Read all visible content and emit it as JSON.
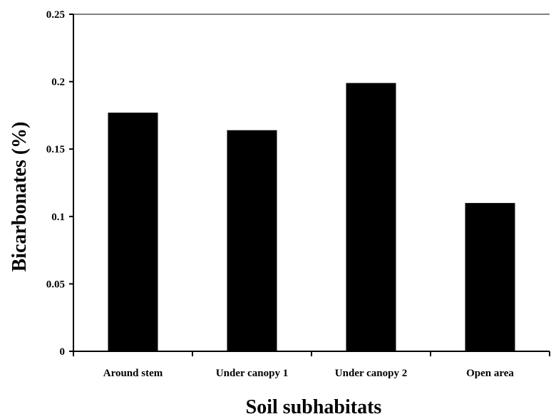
{
  "chart_data": {
    "type": "bar",
    "title": "",
    "xlabel": "Soil subhabitats",
    "ylabel": "Bicarbonates (%)",
    "categories": [
      "Around stem",
      "Under canopy 1",
      "Under canopy 2",
      "Open area"
    ],
    "values": [
      0.177,
      0.164,
      0.199,
      0.11
    ],
    "ylim": [
      0,
      0.25
    ],
    "yticks": [
      "0",
      "0.05",
      "0.1",
      "0.15",
      "0.2",
      "0.25"
    ],
    "grid": false,
    "legend": "none",
    "bar_color": "#000000"
  }
}
